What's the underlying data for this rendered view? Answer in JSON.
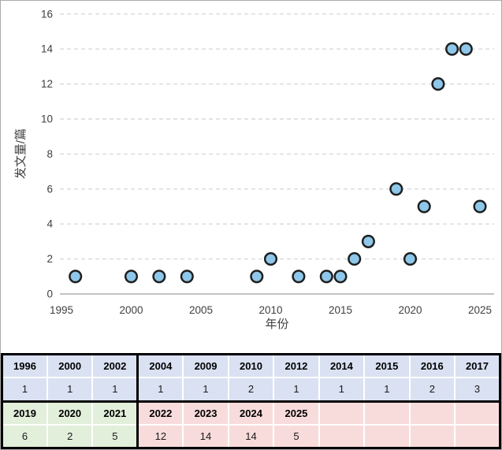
{
  "chart_data": {
    "type": "scatter",
    "title": "",
    "xlabel": "年份",
    "ylabel": "发文量/篇",
    "x": [
      1996,
      2000,
      2002,
      2004,
      2009,
      2010,
      2012,
      2014,
      2015,
      2016,
      2017,
      2019,
      2020,
      2021,
      2022,
      2023,
      2024,
      2025
    ],
    "y": [
      1,
      1,
      1,
      1,
      1,
      2,
      1,
      1,
      1,
      2,
      3,
      6,
      2,
      5,
      12,
      14,
      14,
      5
    ],
    "xlim": [
      1995,
      2026
    ],
    "ylim": [
      0,
      16
    ],
    "xticks": [
      1995,
      2000,
      2005,
      2010,
      2015,
      2020,
      2025
    ],
    "yticks": [
      0,
      2,
      4,
      6,
      8,
      10,
      12,
      14,
      16
    ],
    "grid": "horizontal-dashed",
    "legend": "none",
    "colors": {
      "marker_fill": "#8EC7E9",
      "marker_stroke": "#1F1F1F",
      "gridline": "#D9D9D9",
      "axis_line": "#C3C3C3",
      "tick_text": "#404040"
    }
  },
  "table": {
    "section_colors": {
      "blue": "#D9E1F2",
      "green": "#E2EFDA",
      "pink": "#F8DCDB"
    },
    "rows": [
      {
        "kind": "year",
        "cells": [
          {
            "text": "1996",
            "c": "blue"
          },
          {
            "text": "2000",
            "c": "blue"
          },
          {
            "text": "2002",
            "c": "blue"
          },
          {
            "text": "2004",
            "c": "blue"
          },
          {
            "text": "2009",
            "c": "blue"
          },
          {
            "text": "2010",
            "c": "blue"
          },
          {
            "text": "2012",
            "c": "blue"
          },
          {
            "text": "2014",
            "c": "blue"
          },
          {
            "text": "2015",
            "c": "blue"
          },
          {
            "text": "2016",
            "c": "blue"
          },
          {
            "text": "2017",
            "c": "blue"
          }
        ]
      },
      {
        "kind": "value",
        "cells": [
          {
            "text": "1",
            "c": "blue"
          },
          {
            "text": "1",
            "c": "blue"
          },
          {
            "text": "1",
            "c": "blue"
          },
          {
            "text": "1",
            "c": "blue"
          },
          {
            "text": "1",
            "c": "blue"
          },
          {
            "text": "2",
            "c": "blue"
          },
          {
            "text": "1",
            "c": "blue"
          },
          {
            "text": "1",
            "c": "blue"
          },
          {
            "text": "1",
            "c": "blue"
          },
          {
            "text": "2",
            "c": "blue"
          },
          {
            "text": "3",
            "c": "blue"
          }
        ]
      },
      {
        "kind": "year",
        "cells": [
          {
            "text": "2019",
            "c": "green"
          },
          {
            "text": "2020",
            "c": "green"
          },
          {
            "text": "2021",
            "c": "green"
          },
          {
            "text": "2022",
            "c": "pink"
          },
          {
            "text": "2023",
            "c": "pink"
          },
          {
            "text": "2024",
            "c": "pink"
          },
          {
            "text": "2025",
            "c": "pink"
          },
          {
            "text": "",
            "c": "pink"
          },
          {
            "text": "",
            "c": "pink"
          },
          {
            "text": "",
            "c": "pink"
          },
          {
            "text": "",
            "c": "pink"
          }
        ]
      },
      {
        "kind": "value",
        "cells": [
          {
            "text": "6",
            "c": "green"
          },
          {
            "text": "2",
            "c": "green"
          },
          {
            "text": "5",
            "c": "green"
          },
          {
            "text": "12",
            "c": "pink"
          },
          {
            "text": "14",
            "c": "pink"
          },
          {
            "text": "14",
            "c": "pink"
          },
          {
            "text": "5",
            "c": "pink"
          },
          {
            "text": "",
            "c": "pink"
          },
          {
            "text": "",
            "c": "pink"
          },
          {
            "text": "",
            "c": "pink"
          },
          {
            "text": "",
            "c": "pink"
          }
        ]
      }
    ]
  }
}
